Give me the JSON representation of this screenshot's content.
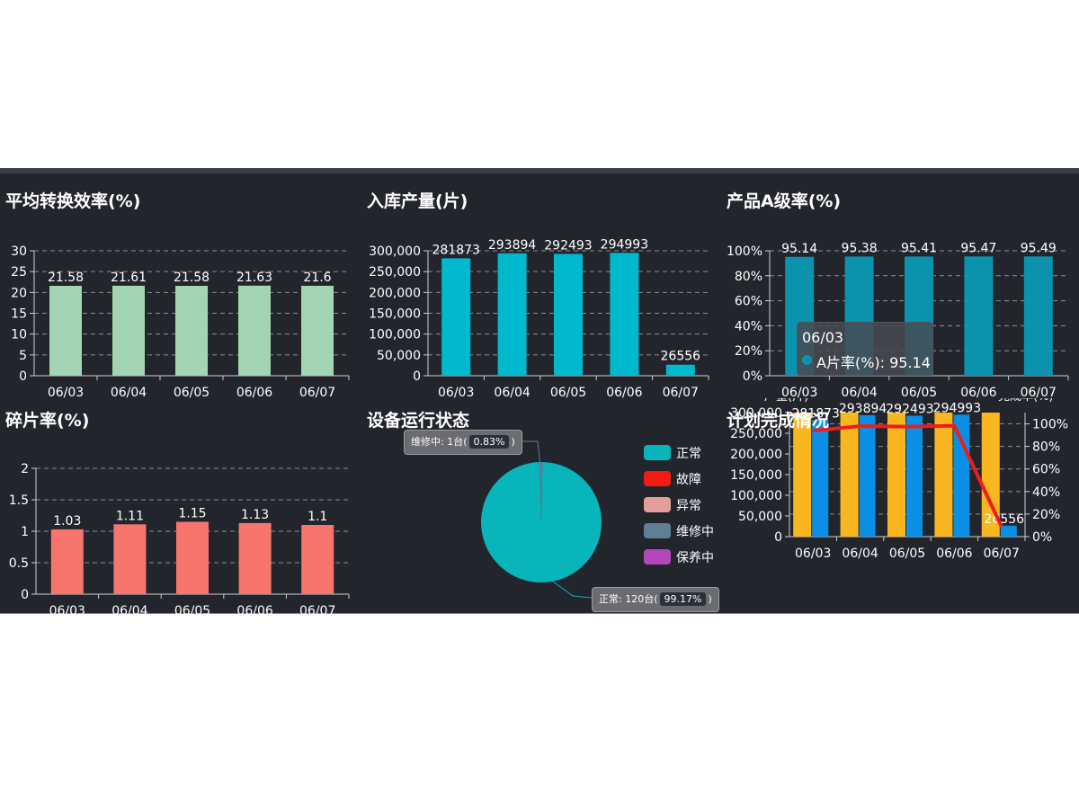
{
  "colors": {
    "background": "#23252c",
    "efficiency_bar": "#a3d4b3",
    "inbound_bar": "#00b9cf",
    "grade_bar": "#0b93ad",
    "breakage_bar": "#f8756e",
    "pie_normal": "#08b5bb",
    "plan_bar": "#f8b720",
    "actual_bar": "#0b8fe4",
    "rate_line": "#ef1c1c"
  },
  "panels": {
    "efficiency": {
      "title": "平均转换效率(%)"
    },
    "inbound": {
      "title": "入库产量(片)"
    },
    "grade": {
      "title": "产品A级率(%)",
      "tooltip": {
        "date": "06/03",
        "label": "A片率(%): 95.14"
      }
    },
    "breakage": {
      "title": "碎片率(%)"
    },
    "equipment": {
      "title": "设备运行状态",
      "callout_repair": "维修中: 1台(",
      "callout_repair_pct": "0.83%",
      "callout_repair_end": ")",
      "callout_normal": "正常: 120台(",
      "callout_normal_pct": "99.17%",
      "callout_normal_end": ")"
    },
    "plan": {
      "title": "计划完成情况"
    }
  },
  "chart_data": [
    {
      "id": "efficiency",
      "type": "bar",
      "categories": [
        "06/03",
        "06/04",
        "06/05",
        "06/06",
        "06/07"
      ],
      "values": [
        21.58,
        21.61,
        21.58,
        21.63,
        21.6
      ],
      "labels": [
        "21.58",
        "21.61",
        "21.58",
        "21.63",
        "21.6"
      ],
      "ylim": [
        0,
        30
      ],
      "yticks": [
        "0",
        "5",
        "10",
        "15",
        "20",
        "25",
        "30"
      ],
      "grid": true
    },
    {
      "id": "inbound",
      "type": "bar",
      "categories": [
        "06/03",
        "06/04",
        "06/05",
        "06/06",
        "06/07"
      ],
      "values": [
        281873,
        293894,
        292493,
        294993,
        26556
      ],
      "labels": [
        "281873",
        "293894",
        "292493",
        "294993",
        "26556"
      ],
      "ylim": [
        0,
        300000
      ],
      "yticks": [
        "0",
        "50,000",
        "100,000",
        "150,000",
        "200,000",
        "250,000",
        "300,000"
      ],
      "grid": true
    },
    {
      "id": "grade",
      "type": "bar",
      "categories": [
        "06/03",
        "06/04",
        "06/05",
        "06/06",
        "06/07"
      ],
      "values": [
        95.14,
        95.38,
        95.41,
        95.47,
        95.49
      ],
      "labels": [
        "95.14",
        "95.38",
        "95.41",
        "95.47",
        "95.49"
      ],
      "ylim": [
        0,
        100
      ],
      "yticks": [
        "0%",
        "20%",
        "40%",
        "60%",
        "80%",
        "100%"
      ],
      "grid": true
    },
    {
      "id": "breakage",
      "type": "bar",
      "categories": [
        "06/03",
        "06/04",
        "06/05",
        "06/06",
        "06/07"
      ],
      "values": [
        1.03,
        1.11,
        1.15,
        1.13,
        1.1
      ],
      "labels": [
        "1.03",
        "1.11",
        "1.15",
        "1.13",
        "1.1"
      ],
      "ylim": [
        0,
        2
      ],
      "yticks": [
        "0",
        "0.5",
        "1",
        "1.5",
        "2"
      ],
      "grid": true
    },
    {
      "id": "equipment",
      "type": "pie",
      "slices": [
        {
          "name": "正常",
          "value": 120,
          "color": "#08b5bb"
        },
        {
          "name": "故障",
          "value": 0,
          "color": "#f01b13"
        },
        {
          "name": "异常",
          "value": 0,
          "color": "#e59f9a"
        },
        {
          "name": "维修中",
          "value": 1,
          "color": "#607f97"
        },
        {
          "name": "保养中",
          "value": 0,
          "color": "#b547bd"
        }
      ],
      "legend": "right"
    },
    {
      "id": "plan",
      "type": "bar",
      "categories": [
        "06/03",
        "06/04",
        "06/05",
        "06/06",
        "06/07"
      ],
      "y_left_label": "产量(片)",
      "y_right_label": "完成率(%)",
      "series": [
        {
          "values": [
            300000,
            300000,
            300000,
            300000,
            300000
          ],
          "kind": "bar"
        },
        {
          "values": [
            281873,
            293894,
            292493,
            294993,
            26556
          ],
          "labels": [
            "281873",
            "293894",
            "292493",
            "294993",
            "26556"
          ],
          "kind": "bar"
        },
        {
          "values": [
            94,
            98,
            97.5,
            98.3,
            8.9
          ],
          "kind": "line",
          "axis": "right"
        }
      ],
      "ylim_left": [
        0,
        300000
      ],
      "yticks_left": [
        "0",
        "50,000",
        "100,000",
        "150,000",
        "200,000",
        "250,000",
        "300,000"
      ],
      "ylim_right": [
        0,
        110
      ],
      "yticks_right": [
        "0%",
        "20%",
        "40%",
        "60%",
        "80%",
        "100%"
      ]
    }
  ]
}
